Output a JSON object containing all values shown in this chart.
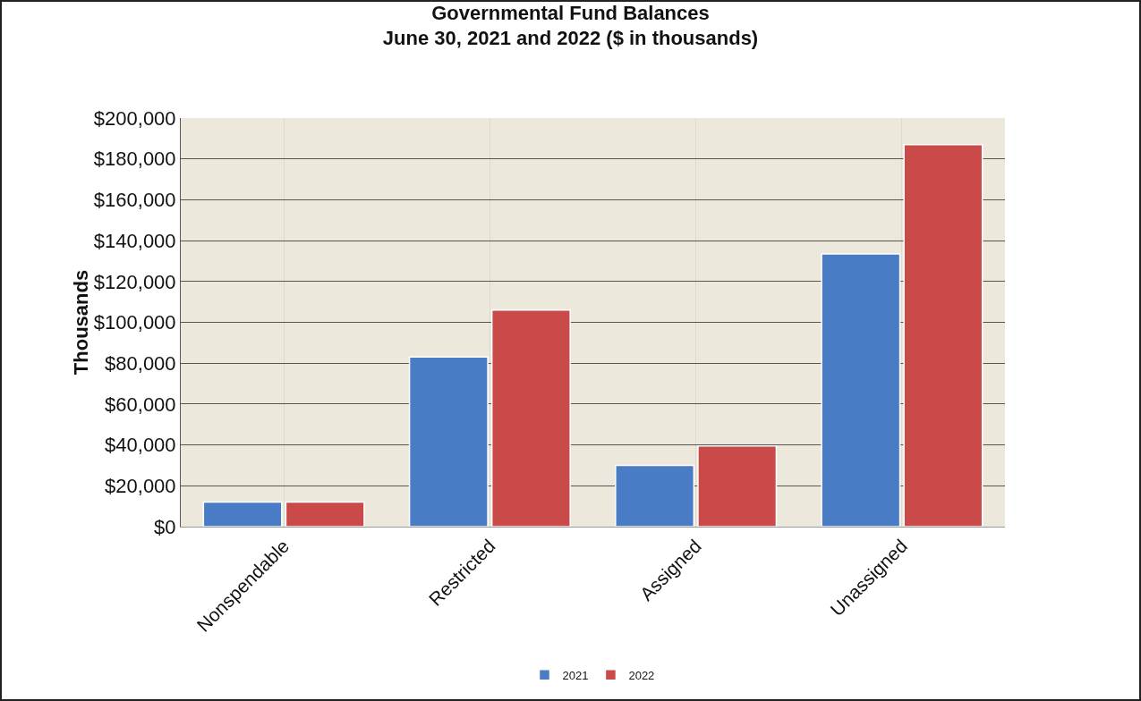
{
  "chart_data": {
    "type": "bar",
    "title": "Governmental Fund Balances\nJune 30, 2021 and 2022 ($ in thousands)",
    "ylabel": "Thousands",
    "categories": [
      "Nonspendable",
      "Restricted",
      "Assigned",
      "Unassigned"
    ],
    "series": [
      {
        "name": "2021",
        "color": "#4a7cc6",
        "values": [
          12000,
          83000,
          30000,
          133500
        ]
      },
      {
        "name": "2022",
        "color": "#c94a48",
        "values": [
          12000,
          106000,
          39500,
          187000
        ]
      }
    ],
    "ylim": [
      0,
      200000
    ],
    "yticks": [
      {
        "value": 0,
        "label": "$0"
      },
      {
        "value": 20000,
        "label": "$20,000"
      },
      {
        "value": 40000,
        "label": "$40,000"
      },
      {
        "value": 60000,
        "label": "$60,000"
      },
      {
        "value": 80000,
        "label": "$80,000"
      },
      {
        "value": 100000,
        "label": "$100,000"
      },
      {
        "value": 120000,
        "label": "$120,000"
      },
      {
        "value": 140000,
        "label": "$140,000"
      },
      {
        "value": 160000,
        "label": "$160,000"
      },
      {
        "value": 180000,
        "label": "$180,000"
      },
      {
        "value": 200000,
        "label": "$200,000"
      }
    ],
    "grid": true,
    "legend": "bottom"
  }
}
